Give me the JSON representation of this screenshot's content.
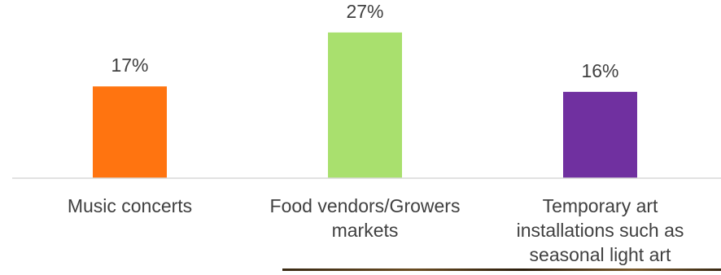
{
  "chart_data": {
    "type": "bar",
    "categories": [
      "Music concerts",
      "Food vendors/Growers markets",
      "Temporary art installations such as seasonal light art"
    ],
    "category_lines": [
      [
        "Music concerts"
      ],
      [
        "Food vendors/Growers",
        "markets"
      ],
      [
        "Temporary art",
        "installations such as",
        "seasonal light art"
      ]
    ],
    "values": [
      17,
      27,
      16
    ],
    "value_labels": [
      "17%",
      "27%",
      "16%"
    ],
    "colors": [
      "#FF7410",
      "#A9E06E",
      "#7030A0"
    ],
    "axis_color": "#D9D9D9",
    "ylim": [
      0,
      30
    ],
    "title": "",
    "xlabel": "",
    "ylabel": "",
    "grid": false,
    "legend": "none"
  }
}
